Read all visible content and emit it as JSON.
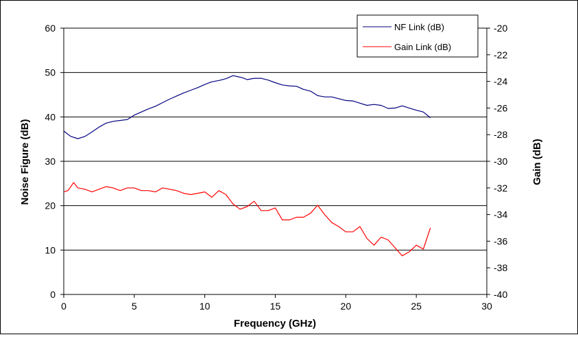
{
  "chart_data": {
    "type": "line",
    "title": "",
    "xlabel": "Frequency (GHz)",
    "ylabel": "Noise Figure (dB)",
    "y2label": "Gain (dB)",
    "xlim": [
      0,
      30
    ],
    "ylim": [
      0,
      60
    ],
    "y2lim": [
      -40,
      -20
    ],
    "x_ticks": [
      "0",
      "5",
      "10",
      "15",
      "20",
      "25",
      "30"
    ],
    "y_ticks": [
      "0",
      "10",
      "20",
      "30",
      "40",
      "50",
      "60"
    ],
    "y2_ticks": [
      "-40",
      "-38",
      "-36",
      "-34",
      "-32",
      "-30",
      "-28",
      "-26",
      "-24",
      "-22",
      "-20"
    ],
    "grid": "horizontal",
    "legend_position": "top-right",
    "series": [
      {
        "name": "NF Link (dB)",
        "axis": "left",
        "color": "#000080",
        "x": [
          0,
          0.5,
          1,
          1.5,
          2,
          2.5,
          3,
          3.5,
          4,
          4.5,
          5,
          5.5,
          6,
          6.5,
          7,
          7.5,
          8,
          8.5,
          9,
          9.5,
          10,
          10.5,
          11,
          11.5,
          12,
          12.3,
          12.7,
          13,
          13.5,
          14,
          14.5,
          15,
          15.5,
          16,
          16.5,
          17,
          17.5,
          18,
          18.5,
          19,
          19.5,
          20,
          20.5,
          21,
          21.5,
          22,
          22.5,
          23,
          23.5,
          24,
          24.5,
          25,
          25.5,
          26
        ],
        "values": [
          36.8,
          35.6,
          35.1,
          35.6,
          36.6,
          37.7,
          38.6,
          39.0,
          39.2,
          39.4,
          40.4,
          41.1,
          41.8,
          42.4,
          43.2,
          44.0,
          44.7,
          45.4,
          46.0,
          46.6,
          47.3,
          47.9,
          48.2,
          48.6,
          49.3,
          49.1,
          48.8,
          48.4,
          48.7,
          48.7,
          48.3,
          47.7,
          47.2,
          47.0,
          46.9,
          46.2,
          45.8,
          44.8,
          44.5,
          44.5,
          44.1,
          43.7,
          43.6,
          43.1,
          42.6,
          42.8,
          42.6,
          41.9,
          42.0,
          42.5,
          42.0,
          41.5,
          41.1,
          39.8
        ]
      },
      {
        "name": "Gain Link (dB)",
        "axis": "right",
        "color": "#ff0000",
        "x": [
          0,
          0.3,
          0.7,
          1,
          1.5,
          2,
          2.5,
          3,
          3.5,
          4,
          4.5,
          5,
          5.5,
          6,
          6.5,
          7,
          7.5,
          8,
          8.5,
          9,
          9.5,
          10,
          10.5,
          11,
          11.5,
          12,
          12.5,
          13,
          13.5,
          14,
          14.5,
          15,
          15.5,
          16,
          16.5,
          17,
          17.5,
          18,
          18.5,
          19,
          19.5,
          20,
          20.5,
          21,
          21.5,
          22,
          22.5,
          23,
          23.5,
          24,
          24.5,
          25,
          25.5,
          26
        ],
        "values": [
          -32.3,
          -32.2,
          -31.6,
          -32.0,
          -32.1,
          -32.3,
          -32.1,
          -31.9,
          -32.0,
          -32.2,
          -32.0,
          -32.0,
          -32.2,
          -32.2,
          -32.3,
          -32.0,
          -32.1,
          -32.2,
          -32.4,
          -32.5,
          -32.4,
          -32.3,
          -32.7,
          -32.2,
          -32.5,
          -33.2,
          -33.6,
          -33.4,
          -33.0,
          -33.7,
          -33.7,
          -33.5,
          -34.4,
          -34.4,
          -34.2,
          -34.2,
          -33.9,
          -33.3,
          -34.0,
          -34.6,
          -34.9,
          -35.3,
          -35.3,
          -34.9,
          -35.8,
          -36.3,
          -35.7,
          -35.9,
          -36.5,
          -37.1,
          -36.8,
          -36.3,
          -36.6,
          -35.0
        ]
      }
    ]
  }
}
